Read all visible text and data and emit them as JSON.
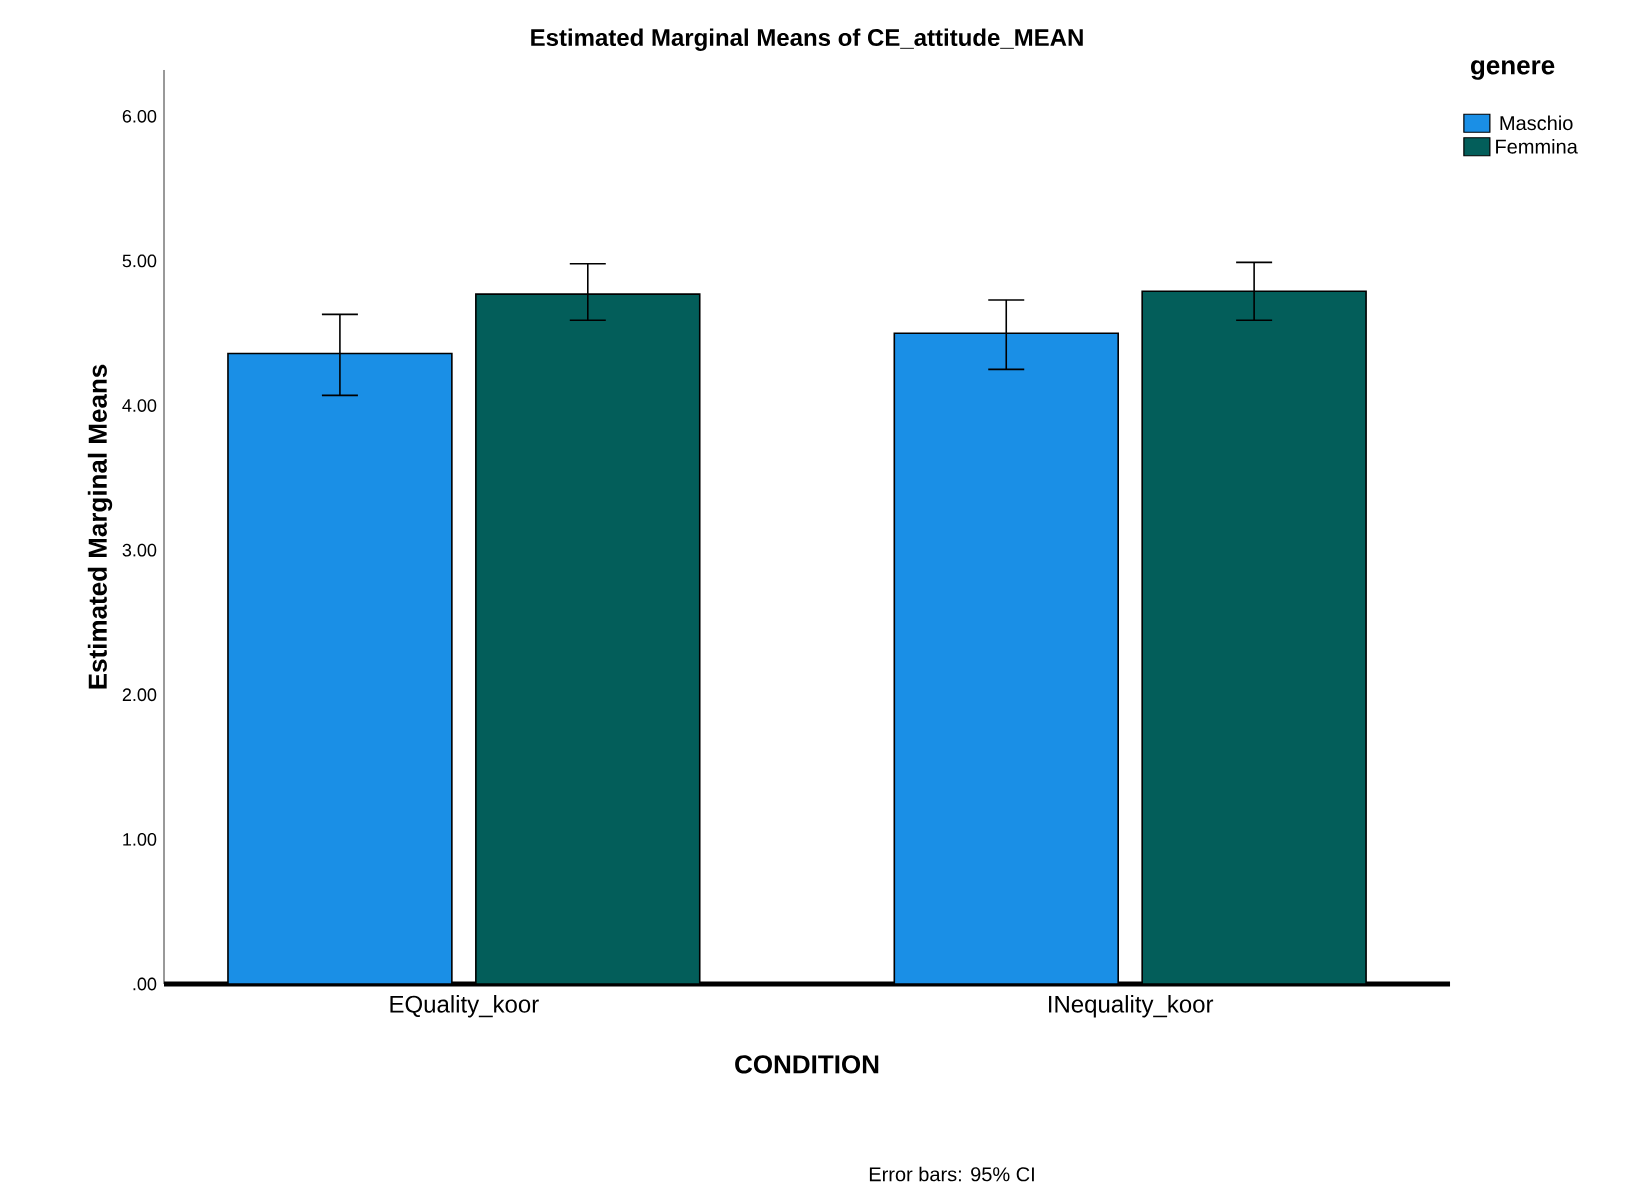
{
  "chart_data": {
    "type": "bar",
    "title": "Estimated Marginal Means of CE_attitude_MEAN",
    "xlabel": "CONDITION",
    "ylabel": "Estimated Marginal Means",
    "legend_title": "genere",
    "categories": [
      "EQuality_koor",
      "INequality_koor"
    ],
    "series": [
      {
        "name": "Maschio",
        "color": "#1a8fe6",
        "values": [
          4.36,
          4.5
        ],
        "errors": [
          [
            4.07,
            4.63
          ],
          [
            4.25,
            4.73
          ]
        ]
      },
      {
        "name": "Femmina",
        "color": "#035e5a",
        "values": [
          4.77,
          4.79
        ],
        "errors": [
          [
            4.59,
            4.98
          ],
          [
            4.59,
            4.99
          ]
        ]
      }
    ],
    "ylim": [
      0,
      6.32
    ],
    "yticks": [
      {
        "value": 0,
        "label": ".00"
      },
      {
        "value": 1,
        "label": "1.00"
      },
      {
        "value": 2,
        "label": "2.00"
      },
      {
        "value": 3,
        "label": "3.00"
      },
      {
        "value": 4,
        "label": "4.00"
      },
      {
        "value": 5,
        "label": "5.00"
      },
      {
        "value": 6,
        "label": "6.00"
      }
    ],
    "legend": "top right",
    "grid": false,
    "annotations": [
      "Error bars: 95% CI"
    ]
  }
}
